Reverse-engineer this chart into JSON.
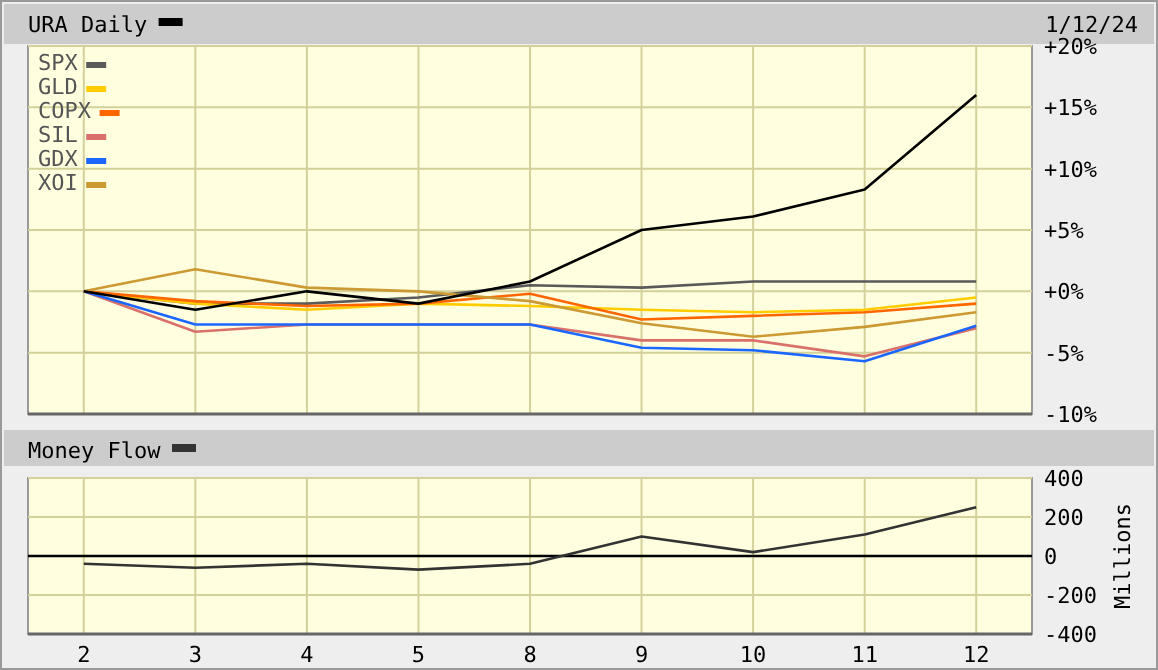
{
  "chart_data": [
    {
      "type": "line",
      "title": "URA Daily",
      "annotations": [
        "1/12/24"
      ],
      "categories": [
        "2",
        "3",
        "4",
        "5",
        "8",
        "9",
        "10",
        "11",
        "12"
      ],
      "ylim": [
        -10,
        20
      ],
      "yticks": [
        {
          "value": 20,
          "label": "+20%"
        },
        {
          "value": 15,
          "label": "+15%"
        },
        {
          "value": 10,
          "label": "+10%"
        },
        {
          "value": 5,
          "label": "+5%"
        },
        {
          "value": 0,
          "label": "+0%"
        },
        {
          "value": -5,
          "label": "-5%"
        },
        {
          "value": -10,
          "label": "-10%"
        }
      ],
      "grid": true,
      "legend": "top left",
      "tick_labels": "y",
      "series": [
        {
          "color": "#5a5a5a",
          "name": "SPX",
          "values": [
            0,
            -1,
            -1,
            -0.5,
            0.5,
            0.3,
            0.8,
            0.8,
            0.8
          ]
        },
        {
          "color": "#ffcc00",
          "name": "GLD",
          "values": [
            0,
            -1,
            -1.5,
            -1,
            -1.2,
            -1.5,
            -1.7,
            -1.5,
            -0.5
          ]
        },
        {
          "color": "#ff6600",
          "name": "COPX",
          "values": [
            0,
            -0.8,
            -1.2,
            -1,
            -0.2,
            -2.3,
            -2,
            -1.7,
            -1
          ]
        },
        {
          "color": "#d9706a",
          "name": "SIL",
          "values": [
            0,
            -3.3,
            -2.7,
            -2.7,
            -2.7,
            -4,
            -4,
            -5.3,
            -3
          ]
        },
        {
          "color": "#1a66ff",
          "name": "GDX",
          "values": [
            0,
            -2.7,
            -2.7,
            -2.7,
            -2.7,
            -4.6,
            -4.8,
            -5.7,
            -2.8
          ]
        },
        {
          "color": "#cc9933",
          "name": "XOI",
          "values": [
            0,
            1.8,
            0.3,
            0,
            -0.8,
            -2.6,
            -3.7,
            -2.9,
            -1.7
          ]
        },
        {
          "color": "#000000",
          "values": [
            0,
            -1.5,
            0,
            -1,
            0.8,
            5,
            6.1,
            8.3,
            16
          ]
        }
      ]
    },
    {
      "type": "line",
      "title": "Money Flow",
      "ylabel": "Millions",
      "categories": [
        "2",
        "3",
        "4",
        "5",
        "8",
        "9",
        "10",
        "11",
        "12"
      ],
      "ylim": [
        -400,
        400
      ],
      "yticks": [
        -400,
        -200,
        0,
        200,
        400
      ],
      "grid": true,
      "ref_lines": [
        {
          "axis": "y",
          "value": 0,
          "color": "#000000"
        }
      ],
      "series": [
        {
          "color": "#333333",
          "values": [
            -40,
            -60,
            -40,
            -70,
            -40,
            100,
            20,
            110,
            250
          ]
        }
      ]
    }
  ]
}
